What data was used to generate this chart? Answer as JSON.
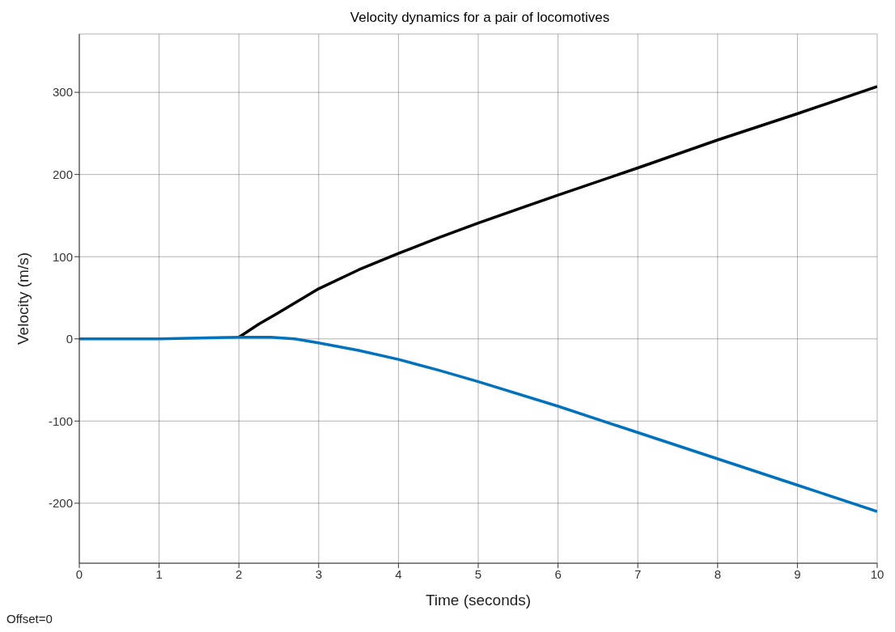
{
  "chart_data": {
    "type": "line",
    "title": "Velocity dynamics for a pair of locomotives",
    "xlabel": "Time (seconds)",
    "ylabel": "Velocity (m/s)",
    "annotations": [
      "Offset=0"
    ],
    "xlim": [
      0,
      10
    ],
    "xticks": [
      0,
      1,
      2,
      3,
      4,
      5,
      6,
      7,
      8,
      9,
      10
    ],
    "ylim": [
      -273,
      371
    ],
    "yticks": [
      -200,
      -100,
      0,
      100,
      200,
      300
    ],
    "grid": true,
    "line_style": "solid",
    "marker": "none",
    "series": [
      {
        "color": "#000000",
        "x": [
          2,
          2.25,
          2.5,
          3,
          3.5,
          4,
          4.5,
          5,
          6,
          7,
          8,
          9,
          10
        ],
        "values": [
          2,
          18,
          32,
          61,
          84,
          104,
          123,
          141,
          175,
          208,
          242,
          274,
          307
        ]
      },
      {
        "color": "#0072bd",
        "x": [
          0,
          1,
          2,
          2.4,
          2.7,
          3,
          3.5,
          4,
          4.5,
          5,
          6,
          7,
          8,
          9,
          10
        ],
        "values": [
          0,
          0,
          2,
          2,
          0,
          -5,
          -14,
          -25,
          -38,
          -52,
          -82,
          -114,
          -146,
          -178,
          -210
        ]
      }
    ]
  }
}
